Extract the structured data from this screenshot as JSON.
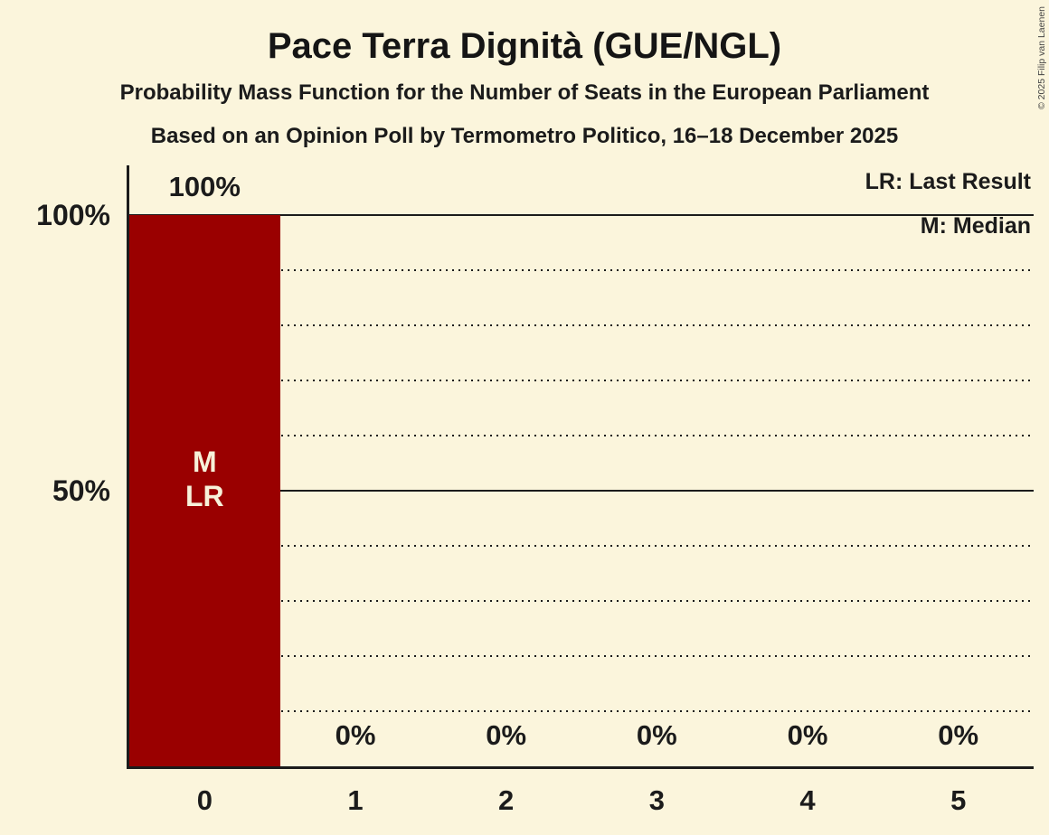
{
  "page": {
    "background": "#fbf5dc",
    "text_color": "#1b1b1b"
  },
  "header": {
    "title": "Pace Terra Dignità (GUE/NGL)",
    "subtitle": "Probability Mass Function for the Number of Seats in the European Parliament",
    "poll_line": "Based on an Opinion Poll by Termometro Politico, 16–18 December 2025"
  },
  "legend": {
    "lr": "LR: Last Result",
    "m": "M: Median"
  },
  "copyright": "© 2025 Filip van Laenen",
  "chart_data": {
    "type": "bar",
    "title": "Pace Terra Dignità (GUE/NGL)",
    "categories": [
      "0",
      "1",
      "2",
      "3",
      "4",
      "5"
    ],
    "values": [
      100,
      0,
      0,
      0,
      0,
      0
    ],
    "value_labels": [
      "100%",
      "0%",
      "0%",
      "0%",
      "0%",
      "0%"
    ],
    "ylim": [
      0,
      100
    ],
    "ytick_labels": [
      {
        "value": 100,
        "label": "100%"
      },
      {
        "value": 50,
        "label": "50%"
      }
    ],
    "solid_gridlines": [
      100,
      50
    ],
    "dotted_gridlines": [
      90,
      80,
      70,
      60,
      40,
      30,
      20,
      10
    ],
    "bar_color": "#9a0000",
    "annotation_color": "#f7f1d9",
    "bar_annotations": [
      {
        "category_index": 0,
        "lines": [
          "M",
          "LR"
        ]
      }
    ],
    "legend_position": "top-right",
    "grid": "horizontal; dotted every 10%, solid at 50% and 100%"
  }
}
